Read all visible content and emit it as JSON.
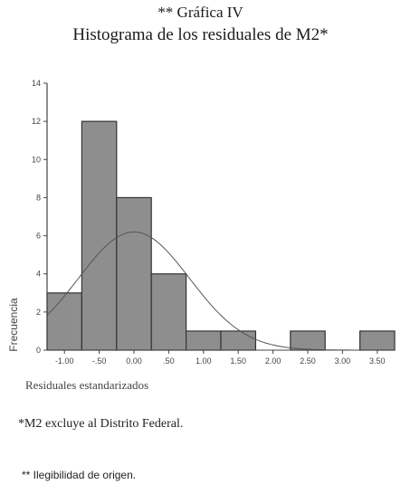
{
  "header": {
    "line1": "** Gráfica IV",
    "line2": "Histograma de los residuales de M2*"
  },
  "notes": {
    "note1": "*M2 excluye al Distrito Federal.",
    "note2": "** Ilegibilidad de origen."
  },
  "chart_data": {
    "type": "bar",
    "title": "",
    "xlabel": "Residuales estandarizados",
    "ylabel": "Frecuencia",
    "bin_edges": [
      -1.25,
      -0.75,
      -0.25,
      0.25,
      0.75,
      1.25,
      1.75,
      2.25,
      2.75,
      3.25,
      3.75
    ],
    "values": [
      3,
      12,
      8,
      4,
      1,
      1,
      0,
      1,
      0,
      1
    ],
    "xticks": [
      -1.0,
      -0.5,
      0.0,
      0.5,
      1.0,
      1.5,
      2.0,
      2.5,
      3.0,
      3.5
    ],
    "xtick_labels": [
      "-1.00",
      "-.50",
      "0.00",
      ".50",
      "1.00",
      "1.50",
      "2.00",
      "2.50",
      "3.00",
      "3.50"
    ],
    "xlim": [
      -1.25,
      3.75
    ],
    "yticks": [
      0,
      2,
      4,
      6,
      8,
      10,
      12,
      14
    ],
    "ylim": [
      0,
      14
    ],
    "normal_curve": {
      "mean": 0.0,
      "peak_frequency": 6.2,
      "sd": 0.8
    },
    "grid": false,
    "colors": {
      "bar_fill": "#8e8e8e",
      "bar_stroke": "#333333",
      "curve": "#555555",
      "axis": "#444444"
    }
  }
}
